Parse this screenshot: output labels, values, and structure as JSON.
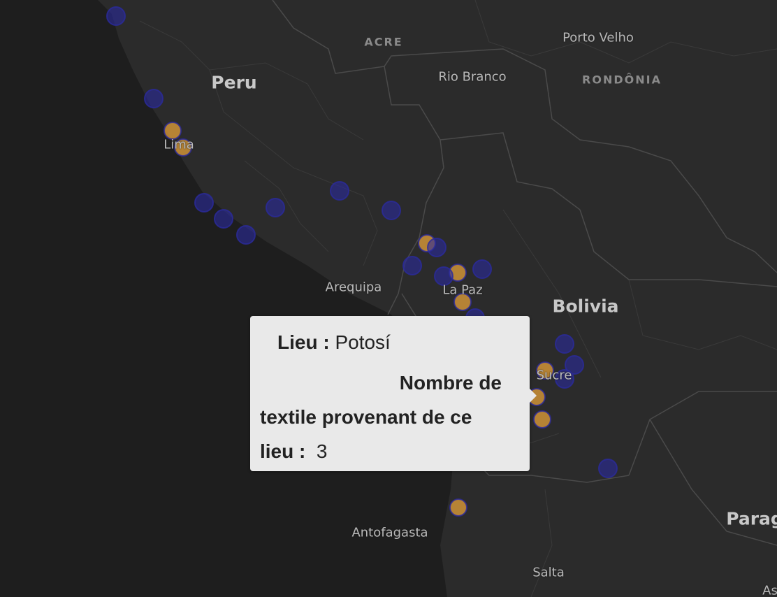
{
  "map": {
    "labels": {
      "peru": "Peru",
      "bolivia": "Bolivia",
      "paraguay": "Parag",
      "acre": "ACRE",
      "rondonia": "RONDÔNIA",
      "porto_velho": "Porto Velho",
      "rio_branco": "Rio Branco",
      "lima": "Lima",
      "arequipa": "Arequipa",
      "la_paz": "La Paz",
      "sucre": "Sucre",
      "antofagasta": "Antofagasta",
      "salta": "Salta",
      "asuncion": "As"
    },
    "colors": {
      "land": "#2b2b2b",
      "ocean": "#1e1e1e",
      "border": "#4a4a4a",
      "marker_blue": "#2a2a9c",
      "marker_orange": "#e6a13a"
    }
  },
  "tooltip": {
    "lieu_label": "Lieu :",
    "lieu_value": "Potosí",
    "count_label_line1": "Nombre de",
    "count_label_line2": "textile provenant de ce",
    "count_label_line3": "lieu :",
    "count_value": "3"
  }
}
